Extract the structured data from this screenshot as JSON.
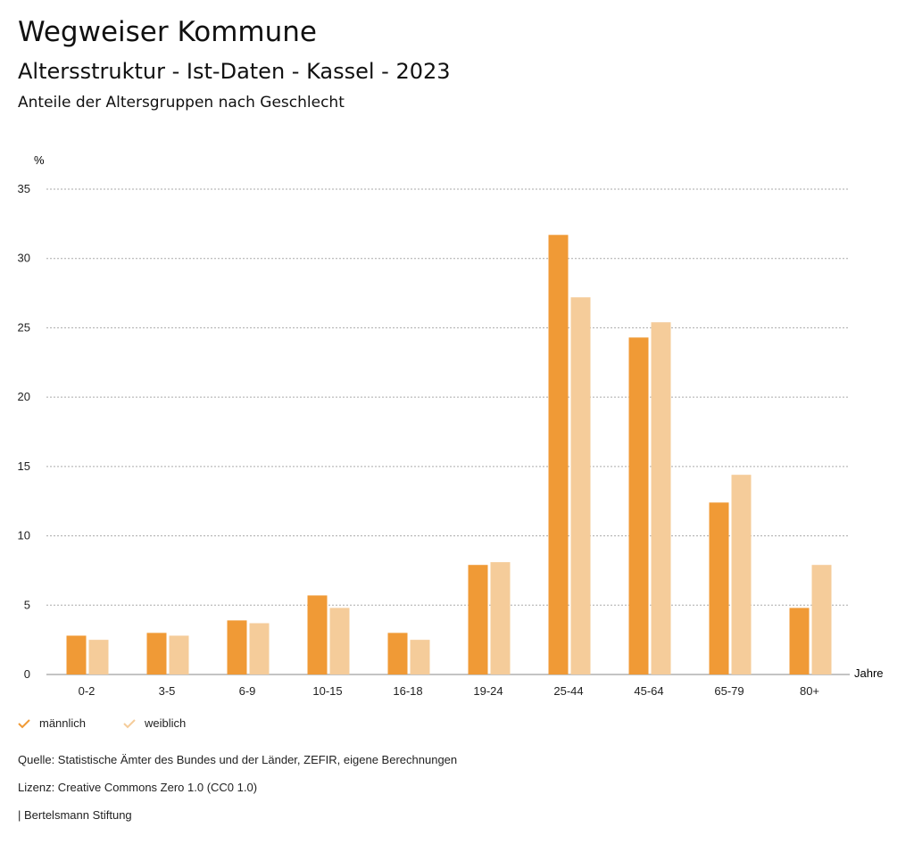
{
  "header": {
    "title": "Wegweiser Kommune",
    "subtitle": "Altersstruktur - Ist-Daten - Kassel - 2023",
    "chart_title": "Anteile der Altersgruppen nach Geschlecht"
  },
  "chart_data": {
    "type": "bar",
    "title": "Anteile der Altersgruppen nach Geschlecht",
    "ylabel": "%",
    "xlabel": "Jahre",
    "ylim": [
      0,
      35
    ],
    "yticks": [
      0,
      5,
      10,
      15,
      20,
      25,
      30,
      35
    ],
    "grid": true,
    "legend_position": "bottom-left",
    "categories": [
      "0-2",
      "3-5",
      "6-9",
      "10-15",
      "16-18",
      "19-24",
      "25-44",
      "45-64",
      "65-79",
      "80+"
    ],
    "series": [
      {
        "name": "männlich",
        "color": "#F09A36",
        "values": [
          2.8,
          3.0,
          3.9,
          5.7,
          3.0,
          7.9,
          31.7,
          24.3,
          12.4,
          4.8
        ]
      },
      {
        "name": "weiblich",
        "color": "#F5CC9A",
        "values": [
          2.5,
          2.8,
          3.7,
          4.8,
          2.5,
          8.1,
          27.2,
          25.4,
          14.4,
          7.9
        ]
      }
    ]
  },
  "footer": {
    "source": "Quelle: Statistische Ämter des Bundes und der Länder, ZEFIR, eigene Berechnungen",
    "license": "Lizenz: Creative Commons Zero 1.0 (CC0 1.0)",
    "brand": "| Bertelsmann Stiftung"
  }
}
